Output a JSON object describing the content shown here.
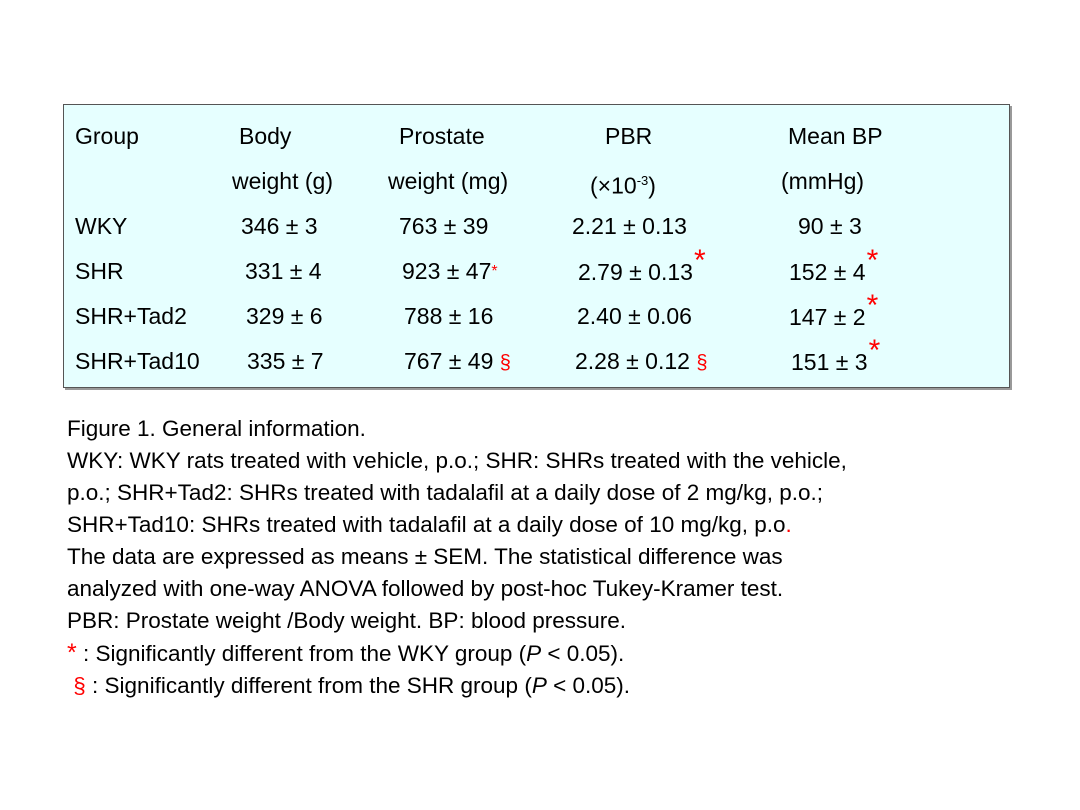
{
  "table": {
    "headers": {
      "group": "Group",
      "body_1": "Body",
      "body_2": "weight (g)",
      "prostate_1": "Prostate",
      "prostate_2": "weight (mg)",
      "pbr_1": "PBR",
      "pbr_2a": "(×10",
      "pbr_2sup": "-3",
      "pbr_2b": ")",
      "bp_1": "Mean BP",
      "bp_2": "(mmHg)"
    },
    "rows": [
      {
        "group": "WKY",
        "body": "346 ± 3",
        "prostate": "763 ± 39",
        "pbr": "2.21 ± 0.13",
        "bp": "90 ± 3"
      },
      {
        "group": "SHR",
        "body": "331 ± 4",
        "prostate": "923 ± 47",
        "prostate_mark": "*",
        "pbr": "2.79 ± 0.13",
        "pbr_mark": "*",
        "bp": "152 ± 4",
        "bp_mark": "*"
      },
      {
        "group": "SHR+Tad2",
        "body": "329 ± 6",
        "prostate": "788 ± 16",
        "pbr": "2.40 ± 0.06",
        "bp": "147 ± 2",
        "bp_mark": "*"
      },
      {
        "group": "SHR+Tad10",
        "body": "335 ± 7",
        "prostate": "767 ± 49",
        "prostate_mark": "§",
        "pbr": "2.28 ± 0.12",
        "pbr_mark": "§",
        "bp": "151 ± 3",
        "bp_mark": "*"
      }
    ]
  },
  "notes": {
    "title": "Figure 1. General information.",
    "line1": "WKY: WKY rats treated with vehicle, p.o.; SHR: SHRs treated with the vehicle,",
    "line2": "p.o.; SHR+Tad2: SHRs treated with tadalafil at a daily dose of 2 mg/kg, p.o.;",
    "line3a": "SHR+Tad10: SHRs treated with tadalafil at a daily dose of 10 mg/kg, p.o",
    "line3b": ".",
    "line4": "The data are expressed as means ± SEM. The statistical difference was",
    "line5": "analyzed with one-way ANOVA followed by post-hoc Tukey-Kramer test.",
    "line6": "PBR: Prostate weight /Body weight. BP: blood pressure.",
    "fn1_mark": "*",
    "fn1_a": " : Significantly different from the WKY group (",
    "fn1_p": "P",
    "fn1_b": " < 0.05).",
    "fn2_mark": "§",
    "fn2_a": " : Significantly different from the SHR group (",
    "fn2_p": "P",
    "fn2_b": " < 0.05)."
  },
  "colors": {
    "box_bg": "#e6ffff",
    "mark": "#ff0000"
  }
}
